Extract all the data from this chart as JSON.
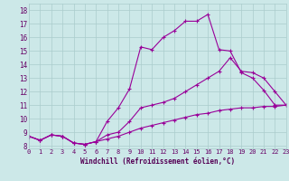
{
  "xlabel": "Windchill (Refroidissement éolien,°C)",
  "bg_color": "#cce8e8",
  "grid_color": "#aacccc",
  "line_color": "#990099",
  "line1_x": [
    0,
    1,
    2,
    3,
    4,
    5,
    6,
    7,
    8,
    9,
    10,
    11,
    12,
    13,
    14,
    15,
    16,
    17,
    18,
    19,
    20,
    21,
    22,
    23
  ],
  "line1_y": [
    8.7,
    8.4,
    8.8,
    8.7,
    8.2,
    8.1,
    8.3,
    9.8,
    10.8,
    12.2,
    15.3,
    15.1,
    16.0,
    16.5,
    17.2,
    17.2,
    17.7,
    15.1,
    15.0,
    13.4,
    13.0,
    12.1,
    11.0,
    11.0
  ],
  "line2_x": [
    0,
    1,
    2,
    3,
    4,
    5,
    6,
    7,
    8,
    9,
    10,
    11,
    12,
    13,
    14,
    15,
    16,
    17,
    18,
    19,
    20,
    21,
    22,
    23
  ],
  "line2_y": [
    8.7,
    8.4,
    8.8,
    8.7,
    8.2,
    8.1,
    8.3,
    8.8,
    9.0,
    9.8,
    10.8,
    11.0,
    11.2,
    11.5,
    12.0,
    12.5,
    13.0,
    13.5,
    14.5,
    13.5,
    13.4,
    13.0,
    12.0,
    11.0
  ],
  "line3_x": [
    0,
    1,
    2,
    3,
    4,
    5,
    6,
    7,
    8,
    9,
    10,
    11,
    12,
    13,
    14,
    15,
    16,
    17,
    18,
    19,
    20,
    21,
    22,
    23
  ],
  "line3_y": [
    8.7,
    8.4,
    8.8,
    8.7,
    8.2,
    8.1,
    8.3,
    8.5,
    8.7,
    9.0,
    9.3,
    9.5,
    9.7,
    9.9,
    10.1,
    10.3,
    10.4,
    10.6,
    10.7,
    10.8,
    10.8,
    10.9,
    10.9,
    11.0
  ],
  "xlim": [
    0,
    23
  ],
  "ylim": [
    7.8,
    18.5
  ],
  "yticks": [
    8,
    9,
    10,
    11,
    12,
    13,
    14,
    15,
    16,
    17,
    18
  ],
  "xticks": [
    0,
    1,
    2,
    3,
    4,
    5,
    6,
    7,
    8,
    9,
    10,
    11,
    12,
    13,
    14,
    15,
    16,
    17,
    18,
    19,
    20,
    21,
    22,
    23
  ],
  "marker": "+",
  "markersize": 3,
  "linewidth": 0.8,
  "tick_fontsize": 5,
  "xlabel_fontsize": 5.5
}
